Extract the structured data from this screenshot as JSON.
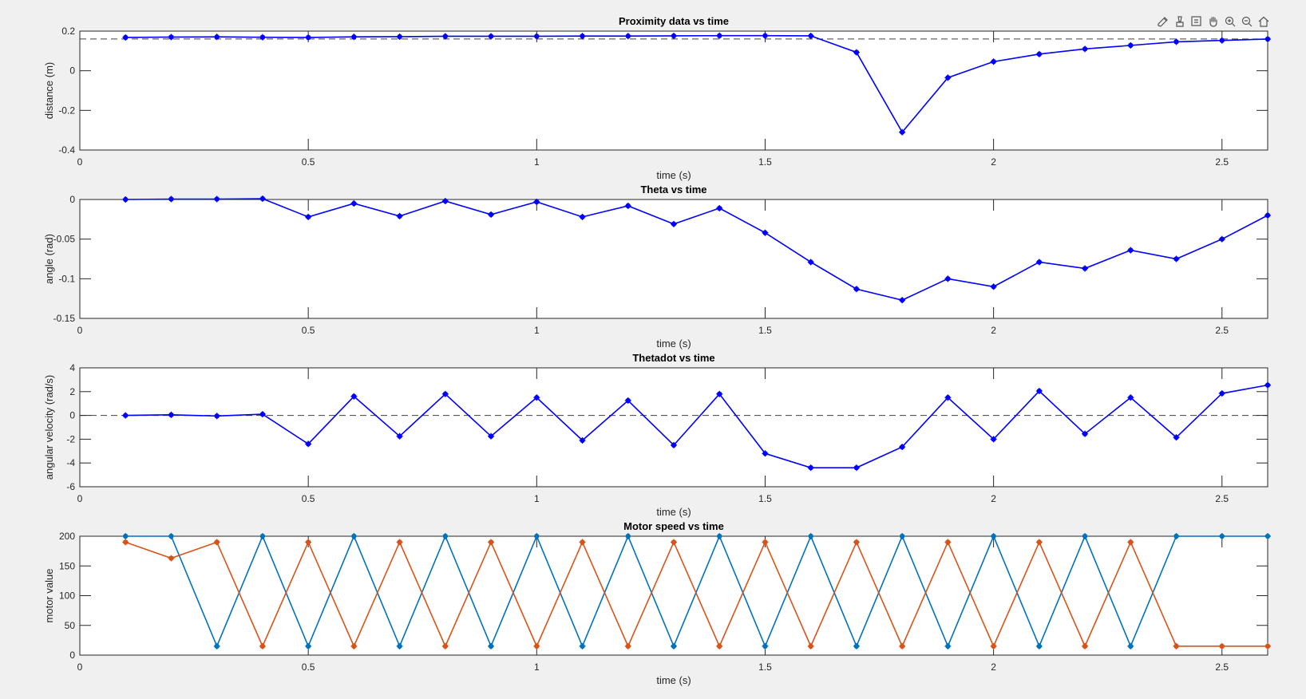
{
  "toolbar": {
    "icons": [
      "brush-edit-icon",
      "data-brush-icon",
      "datatip-icon",
      "pan-hand-icon",
      "zoom-in-icon",
      "zoom-out-icon",
      "home-icon"
    ]
  },
  "colors": {
    "blue": "#0000ff",
    "motor_series_1": "#0072bd",
    "motor_series_2": "#d95319",
    "reference": "#000000"
  },
  "chart_data": [
    {
      "type": "line",
      "title": "Proximity data vs time",
      "xlabel": "time (s)",
      "ylabel": "distance (m)",
      "xlim": [
        0,
        2.6
      ],
      "ylim": [
        -0.4,
        0.2
      ],
      "xticks": [
        "0",
        "0.5",
        "1",
        "1.5",
        "2",
        "2.5"
      ],
      "yticks": [
        "-0.4",
        "-0.2",
        "0",
        "0.2"
      ],
      "reference_line": 0.16,
      "x": [
        0.1,
        0.2,
        0.3,
        0.4,
        0.5,
        0.6,
        0.7,
        0.8,
        0.9,
        1.0,
        1.1,
        1.2,
        1.3,
        1.4,
        1.5,
        1.6,
        1.7,
        1.8,
        1.9,
        2.0,
        2.1,
        2.2,
        2.3,
        2.4,
        2.5,
        2.6
      ],
      "series": [
        {
          "values": [
            0.168,
            0.17,
            0.171,
            0.169,
            0.168,
            0.171,
            0.172,
            0.174,
            0.174,
            0.174,
            0.175,
            0.175,
            0.176,
            0.177,
            0.177,
            0.176,
            0.093,
            -0.31,
            -0.035,
            0.046,
            0.084,
            0.11,
            0.128,
            0.146,
            0.153,
            0.16
          ]
        }
      ]
    },
    {
      "type": "line",
      "title": "Theta vs time",
      "xlabel": "time (s)",
      "ylabel": "angle (rad)",
      "xlim": [
        0,
        2.6
      ],
      "ylim": [
        -0.15,
        0
      ],
      "xticks": [
        "0",
        "0.5",
        "1",
        "1.5",
        "2",
        "2.5"
      ],
      "yticks": [
        "-0.15",
        "-0.1",
        "-0.05",
        "0"
      ],
      "reference_line": 0,
      "x": [
        0.1,
        0.2,
        0.3,
        0.4,
        0.5,
        0.6,
        0.7,
        0.8,
        0.9,
        1.0,
        1.1,
        1.2,
        1.3,
        1.4,
        1.5,
        1.6,
        1.7,
        1.8,
        1.9,
        2.0,
        2.1,
        2.2,
        2.3,
        2.4,
        2.5,
        2.6
      ],
      "series": [
        {
          "values": [
            0,
            0.0005,
            0.0005,
            0.001,
            -0.022,
            -0.005,
            -0.021,
            -0.002,
            -0.019,
            -0.003,
            -0.022,
            -0.008,
            -0.031,
            -0.011,
            -0.042,
            -0.079,
            -0.113,
            -0.127,
            -0.1,
            -0.11,
            -0.079,
            -0.087,
            -0.064,
            -0.075,
            -0.05,
            -0.02
          ]
        }
      ]
    },
    {
      "type": "line",
      "title": "Thetadot vs time",
      "xlabel": "time (s)",
      "ylabel": "angular velocity (rad/s)",
      "xlim": [
        0,
        2.6
      ],
      "ylim": [
        -6,
        4
      ],
      "xticks": [
        "0",
        "0.5",
        "1",
        "1.5",
        "2",
        "2.5"
      ],
      "yticks": [
        "-6",
        "-4",
        "-2",
        "0",
        "2",
        "4"
      ],
      "reference_line": 0,
      "x": [
        0.1,
        0.2,
        0.3,
        0.4,
        0.5,
        0.6,
        0.7,
        0.8,
        0.9,
        1.0,
        1.1,
        1.2,
        1.3,
        1.4,
        1.5,
        1.6,
        1.7,
        1.8,
        1.9,
        2.0,
        2.1,
        2.2,
        2.3,
        2.4,
        2.5,
        2.6
      ],
      "series": [
        {
          "values": [
            0,
            0.05,
            -0.05,
            0.1,
            -2.4,
            1.6,
            -1.75,
            1.8,
            -1.75,
            1.5,
            -2.1,
            1.25,
            -2.5,
            1.8,
            -3.2,
            -4.4,
            -4.4,
            -2.65,
            1.5,
            -2.0,
            2.05,
            -1.55,
            1.5,
            -1.85,
            1.85,
            2.55
          ]
        }
      ]
    },
    {
      "type": "line",
      "title": "Motor speed vs time",
      "xlabel": "time (s)",
      "ylabel": "motor value",
      "xlim": [
        0,
        2.6
      ],
      "ylim": [
        0,
        200
      ],
      "xticks": [
        "0",
        "0.5",
        "1",
        "1.5",
        "2",
        "2.5"
      ],
      "yticks": [
        "0",
        "50",
        "100",
        "150",
        "200"
      ],
      "x": [
        0.1,
        0.2,
        0.3,
        0.4,
        0.5,
        0.6,
        0.7,
        0.8,
        0.9,
        1.0,
        1.1,
        1.2,
        1.3,
        1.4,
        1.5,
        1.6,
        1.7,
        1.8,
        1.9,
        2.0,
        2.1,
        2.2,
        2.3,
        2.4,
        2.5,
        2.6
      ],
      "series": [
        {
          "color": "#0072bd",
          "values": [
            200,
            200,
            15,
            200,
            15,
            200,
            15,
            200,
            15,
            200,
            15,
            200,
            15,
            200,
            15,
            200,
            15,
            200,
            15,
            200,
            15,
            200,
            15,
            200,
            200,
            200
          ]
        },
        {
          "color": "#d95319",
          "values": [
            190,
            163,
            190,
            15,
            190,
            15,
            190,
            15,
            190,
            15,
            190,
            15,
            190,
            15,
            190,
            15,
            190,
            15,
            190,
            15,
            190,
            15,
            190,
            15,
            15,
            15
          ]
        }
      ]
    }
  ]
}
